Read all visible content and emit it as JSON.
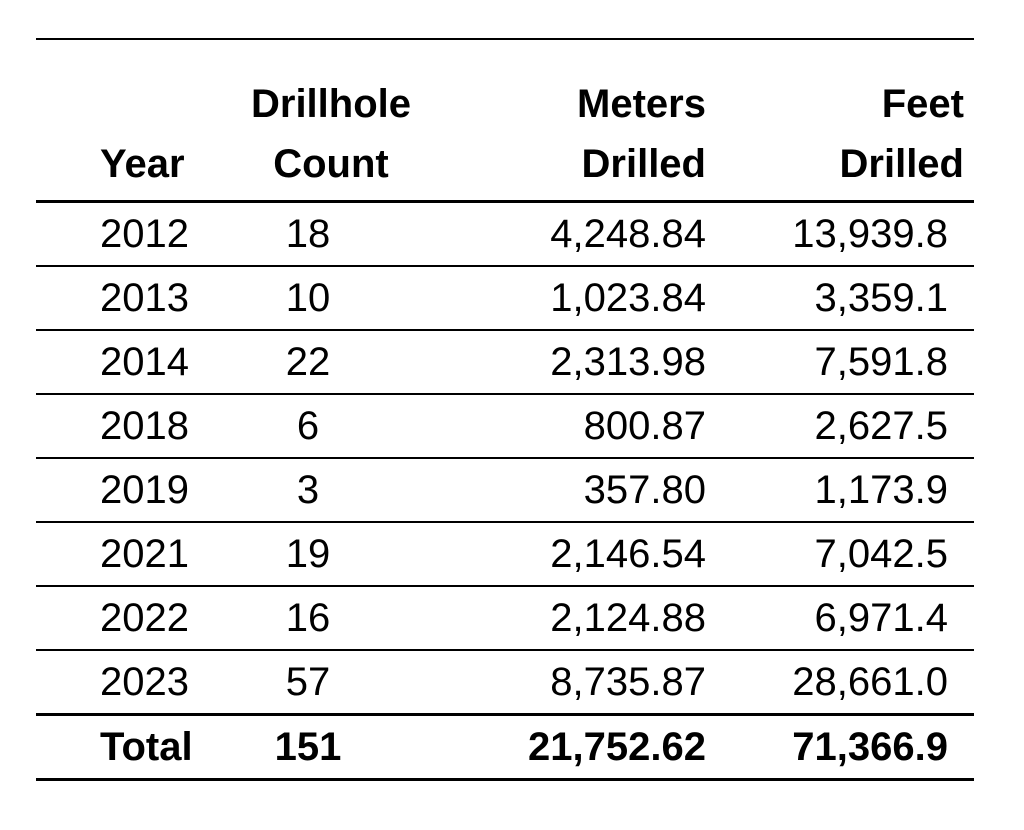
{
  "table": {
    "headers": {
      "year": [
        "Year"
      ],
      "count": [
        "Drillhole",
        "Count"
      ],
      "meters": [
        "Meters",
        "Drilled"
      ],
      "feet": [
        "Feet",
        "Drilled"
      ]
    },
    "rows": [
      {
        "year": "2012",
        "count": "18",
        "meters": "4,248.84",
        "feet": "13,939.8"
      },
      {
        "year": "2013",
        "count": "10",
        "meters": "1,023.84",
        "feet": "3,359.1"
      },
      {
        "year": "2014",
        "count": "22",
        "meters": "2,313.98",
        "feet": "7,591.8"
      },
      {
        "year": "2018",
        "count": "6",
        "meters": "800.87",
        "feet": "2,627.5"
      },
      {
        "year": "2019",
        "count": "3",
        "meters": "357.80",
        "feet": "1,173.9"
      },
      {
        "year": "2021",
        "count": "19",
        "meters": "2,146.54",
        "feet": "7,042.5"
      },
      {
        "year": "2022",
        "count": "16",
        "meters": "2,124.88",
        "feet": "6,971.4"
      },
      {
        "year": "2023",
        "count": "57",
        "meters": "8,735.87",
        "feet": "28,661.0"
      }
    ],
    "total": {
      "year": "Total",
      "count": "151",
      "meters": "21,752.62",
      "feet": "71,366.9"
    }
  }
}
